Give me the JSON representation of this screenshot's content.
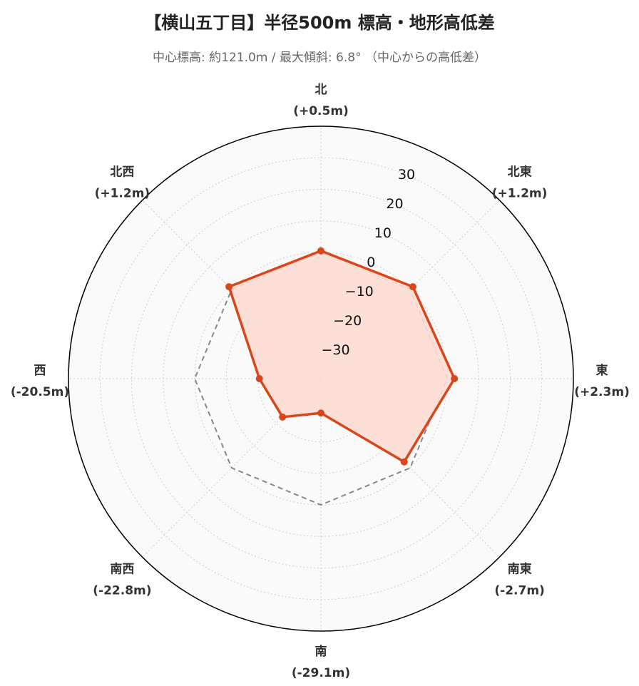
{
  "chart_data": {
    "type": "radar",
    "title": "【横山五丁目】半径500m 標高・地形高低差",
    "subtitle": "中心標高: 約121.0m / 最大傾斜: 6.8° （中心からの高低差）",
    "directions": [
      "北",
      "北東",
      "東",
      "南東",
      "南",
      "南西",
      "西",
      "北西"
    ],
    "direction_labels": [
      "(+0.5m)",
      "(+1.2m)",
      "(+2.3m)",
      "(-2.7m)",
      "(-29.1m)",
      "(-22.8m)",
      "(-20.5m)",
      "(+1.2m)"
    ],
    "values": [
      0.5,
      1.2,
      2.3,
      -2.7,
      -29.1,
      -22.8,
      -20.5,
      1.2
    ],
    "reference_value": 0,
    "radial_range": [
      -40,
      40
    ],
    "radial_ticks": [
      -30,
      -20,
      -10,
      0,
      10,
      20,
      30
    ],
    "radial_tick_labels": [
      "−30",
      "−20",
      "−10",
      "0",
      "10",
      "20",
      "30"
    ],
    "grid": true,
    "colors": {
      "series": "#d9461c",
      "fill": "#fcdcd2",
      "reference": "#888888",
      "background": "#fafafa",
      "grid": "#cccccc"
    }
  }
}
